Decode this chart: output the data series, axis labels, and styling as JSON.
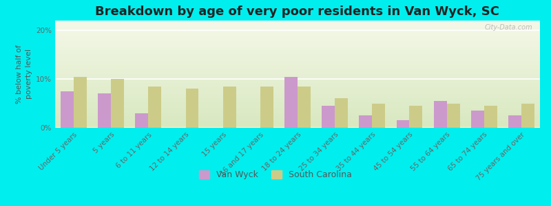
{
  "title": "Breakdown by age of very poor residents in Van Wyck, SC",
  "ylabel": "% below half of\npoverty level",
  "categories": [
    "Under 5 years",
    "5 years",
    "6 to 11 years",
    "12 to 14 years",
    "15 years",
    "16 and 17 years",
    "18 to 24 years",
    "25 to 34 years",
    "35 to 44 years",
    "45 to 54 years",
    "55 to 64 years",
    "65 to 74 years",
    "75 years and over"
  ],
  "van_wyck": [
    7.5,
    7.0,
    3.0,
    0.0,
    0.0,
    0.0,
    10.5,
    4.5,
    2.5,
    1.5,
    5.5,
    3.5,
    2.5
  ],
  "south_carolina": [
    10.5,
    10.0,
    8.5,
    8.0,
    8.5,
    8.5,
    8.5,
    6.0,
    5.0,
    4.5,
    5.0,
    4.5,
    5.0
  ],
  "van_wyck_color": "#cc99cc",
  "sc_color": "#cccc88",
  "plot_bg": "#e8efd8",
  "outer_bg": "#00eeee",
  "ylim": [
    0,
    22
  ],
  "yticks": [
    0,
    10,
    20
  ],
  "ytick_labels": [
    "0%",
    "10%",
    "20%"
  ],
  "title_fontsize": 13,
  "tick_fontsize": 7.5,
  "ylabel_fontsize": 8,
  "legend_fontsize": 9,
  "bar_width": 0.35
}
